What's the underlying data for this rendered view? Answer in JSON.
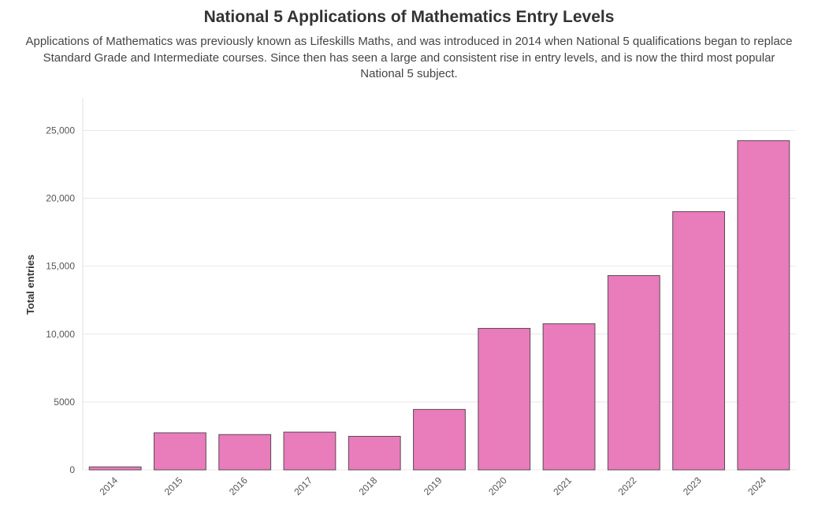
{
  "chart_data": {
    "type": "bar",
    "title": "National 5 Applications of Mathematics Entry Levels",
    "subtitle": "Applications of Mathematics was previously known as Lifeskills Maths, and was introduced in 2014 when National 5 qualifications began to replace Standard Grade and Intermediate courses. Since then has seen a large and consistent rise in entry levels, and is now the third most popular National 5 subject.",
    "xlabel": "",
    "ylabel": "Total entries",
    "categories": [
      "2014",
      "2015",
      "2016",
      "2017",
      "2018",
      "2019",
      "2020",
      "2021",
      "2022",
      "2023",
      "2024"
    ],
    "values": [
      220,
      2730,
      2600,
      2780,
      2470,
      4450,
      10420,
      10760,
      14310,
      19020,
      24250
    ],
    "ylim": [
      0,
      27000
    ],
    "yticks": [
      0,
      5000,
      10000,
      15000,
      20000,
      25000
    ],
    "ytick_labels": [
      "0",
      "5000",
      "10,000",
      "15,000",
      "20,000",
      "25,000"
    ],
    "grid": true,
    "colors": {
      "bar_fill": "#e97cbb",
      "bar_stroke": "#5a4a55",
      "grid": "#e8e8e8"
    }
  }
}
